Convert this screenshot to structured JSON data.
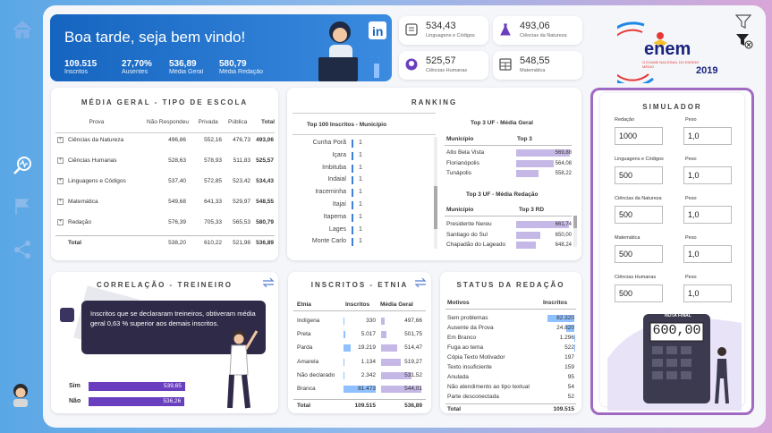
{
  "header": {
    "greeting": "Boa tarde, seja bem vindo!",
    "kpis": [
      {
        "value": "109.515",
        "label": "Inscritos"
      },
      {
        "value": "27,70%",
        "label": "Ausentes"
      },
      {
        "value": "536,89",
        "label": "Média Geral"
      },
      {
        "value": "580,79",
        "label": "Média Redação"
      }
    ]
  },
  "kcards": [
    {
      "value": "534,43",
      "label": "Linguagens e Códigos"
    },
    {
      "value": "493,06",
      "label": "Ciências da Natureza"
    },
    {
      "value": "525,57",
      "label": "Ciências Humanas"
    },
    {
      "value": "548,55",
      "label": "Matemática"
    }
  ],
  "logo": {
    "text": "enem",
    "year": "2019",
    "sub": "O EXAME NACIONAL DO ENSINO MÉDIO"
  },
  "media_geral": {
    "title": "MÉDIA GERAL - TIPO DE ESCOLA",
    "columns": [
      "Prova",
      "Não Respondeu",
      "Privada",
      "Pública",
      "Total"
    ],
    "rows": [
      [
        "Ciências da Natureza",
        "496,86",
        "552,16",
        "476,73",
        "493,06"
      ],
      [
        "Ciências Humanas",
        "528,63",
        "578,93",
        "511,83",
        "525,57"
      ],
      [
        "Linguagens e Códigos",
        "537,40",
        "572,85",
        "523,42",
        "534,43"
      ],
      [
        "Matemática",
        "549,68",
        "641,33",
        "529,97",
        "548,55"
      ],
      [
        "Redação",
        "576,39",
        "705,33",
        "565,53",
        "580,79"
      ],
      [
        "Total",
        "538,20",
        "610,22",
        "521,98",
        "536,89"
      ]
    ]
  },
  "ranking": {
    "title": "RANKING",
    "top100": {
      "title": "Top 100 Inscritos - Município",
      "rows": [
        [
          "Cunha Porã",
          "1"
        ],
        [
          "Içara",
          "1"
        ],
        [
          "Imbituba",
          "1"
        ],
        [
          "Indaial",
          "1"
        ],
        [
          "Iraceminha",
          "1"
        ],
        [
          "Itajaí",
          "1"
        ],
        [
          "Itapema",
          "1"
        ],
        [
          "Lages",
          "1"
        ],
        [
          "Monte Carlo",
          "1"
        ]
      ]
    },
    "top3uf": {
      "title": "Top 3 UF - Média Geral",
      "col1": "Município",
      "col2": "Top 3",
      "rows": [
        {
          "name": "Alto Bela Vista",
          "value": 569.88,
          "label": "569,88"
        },
        {
          "name": "Florianópolis",
          "value": 564.08,
          "label": "564,08"
        },
        {
          "name": "Tunápolis",
          "value": 558.22,
          "label": "558,22"
        }
      ]
    },
    "top3red": {
      "title": "Top 3 UF - Média Redação",
      "col1": "Município",
      "col2": "Top 3 RD",
      "rows": [
        {
          "name": "Presidente Nereu",
          "value": 661.74,
          "label": "661,74"
        },
        {
          "name": "Santiago do Sul",
          "value": 650.0,
          "label": "650,00"
        },
        {
          "name": "Chapadão do Lageado",
          "value": 648.24,
          "label": "648,24"
        }
      ]
    }
  },
  "correlacao": {
    "title": "CORRELAÇÃO - TREINEIRO",
    "text": "Inscritos que se declararam treineiros, obtiveram média geral 0,63 % superior aos demais inscritos.",
    "rows": [
      {
        "label": "Sim",
        "value": 539.65,
        "text": "539,65"
      },
      {
        "label": "Não",
        "value": 536.26,
        "text": "536,26"
      }
    ]
  },
  "etnia": {
    "title": "INSCRITOS - ETNIA",
    "columns": [
      "Etnia",
      "Inscritos",
      "Média Geral"
    ],
    "rows": [
      {
        "etnia": "Indígena",
        "insc": "330",
        "ni": 330,
        "media": "497,66",
        "nm": 497.66
      },
      {
        "etnia": "Preta",
        "insc": "5.017",
        "ni": 5017,
        "media": "501,75",
        "nm": 501.75
      },
      {
        "etnia": "Parda",
        "insc": "19.219",
        "ni": 19219,
        "media": "514,47",
        "nm": 514.47
      },
      {
        "etnia": "Amarela",
        "insc": "1.134",
        "ni": 1134,
        "media": "519,27",
        "nm": 519.27
      },
      {
        "etnia": "Não declarado",
        "insc": "2.342",
        "ni": 2342,
        "media": "531,52",
        "nm": 531.52
      },
      {
        "etnia": "Branca",
        "insc": "81.473",
        "ni": 81473,
        "media": "544,01",
        "nm": 544.01
      }
    ],
    "total": {
      "label": "Total",
      "insc": "109.515",
      "media": "536,89"
    }
  },
  "redacao": {
    "title": "STATUS DA REDAÇÃO",
    "columns": [
      "Motivos",
      "Inscritos"
    ],
    "rows": [
      {
        "m": "Sem problemas",
        "v": "82.320",
        "n": 82320
      },
      {
        "m": "Ausente da Prova",
        "v": "24.820",
        "n": 24820
      },
      {
        "m": "Em Branco",
        "v": "1.296",
        "n": 1296
      },
      {
        "m": "Fuga ao tema",
        "v": "522",
        "n": 522
      },
      {
        "m": "Cópia Texto Motivador",
        "v": "197",
        "n": 197
      },
      {
        "m": "Texto insuficiente",
        "v": "159",
        "n": 159
      },
      {
        "m": "Anulada",
        "v": "95",
        "n": 95
      },
      {
        "m": "Não atendimento ao tipo textual",
        "v": "54",
        "n": 54
      },
      {
        "m": "Parte desconectada",
        "v": "52",
        "n": 52
      }
    ],
    "total": {
      "label": "Total",
      "v": "109.515"
    }
  },
  "simulador": {
    "title": "SIMULADOR",
    "peso_label": "Peso",
    "nota_label": "NOTA FINAL",
    "nota": "600,00",
    "rows": [
      {
        "label": "Redação",
        "value": "1000",
        "peso": "1,0"
      },
      {
        "label": "Linguagens e Códigos",
        "value": "500",
        "peso": "1,0"
      },
      {
        "label": "Ciências da Natureza",
        "value": "500",
        "peso": "1,0"
      },
      {
        "label": "Matemática",
        "value": "500",
        "peso": "1,0"
      },
      {
        "label": "Ciências Humanas",
        "value": "500",
        "peso": "1,0"
      }
    ]
  },
  "colors": {
    "blue": "#1565c0",
    "purple": "#6a3fbf",
    "bar": "#c6b8e6",
    "accent": "#3f7fd6"
  }
}
